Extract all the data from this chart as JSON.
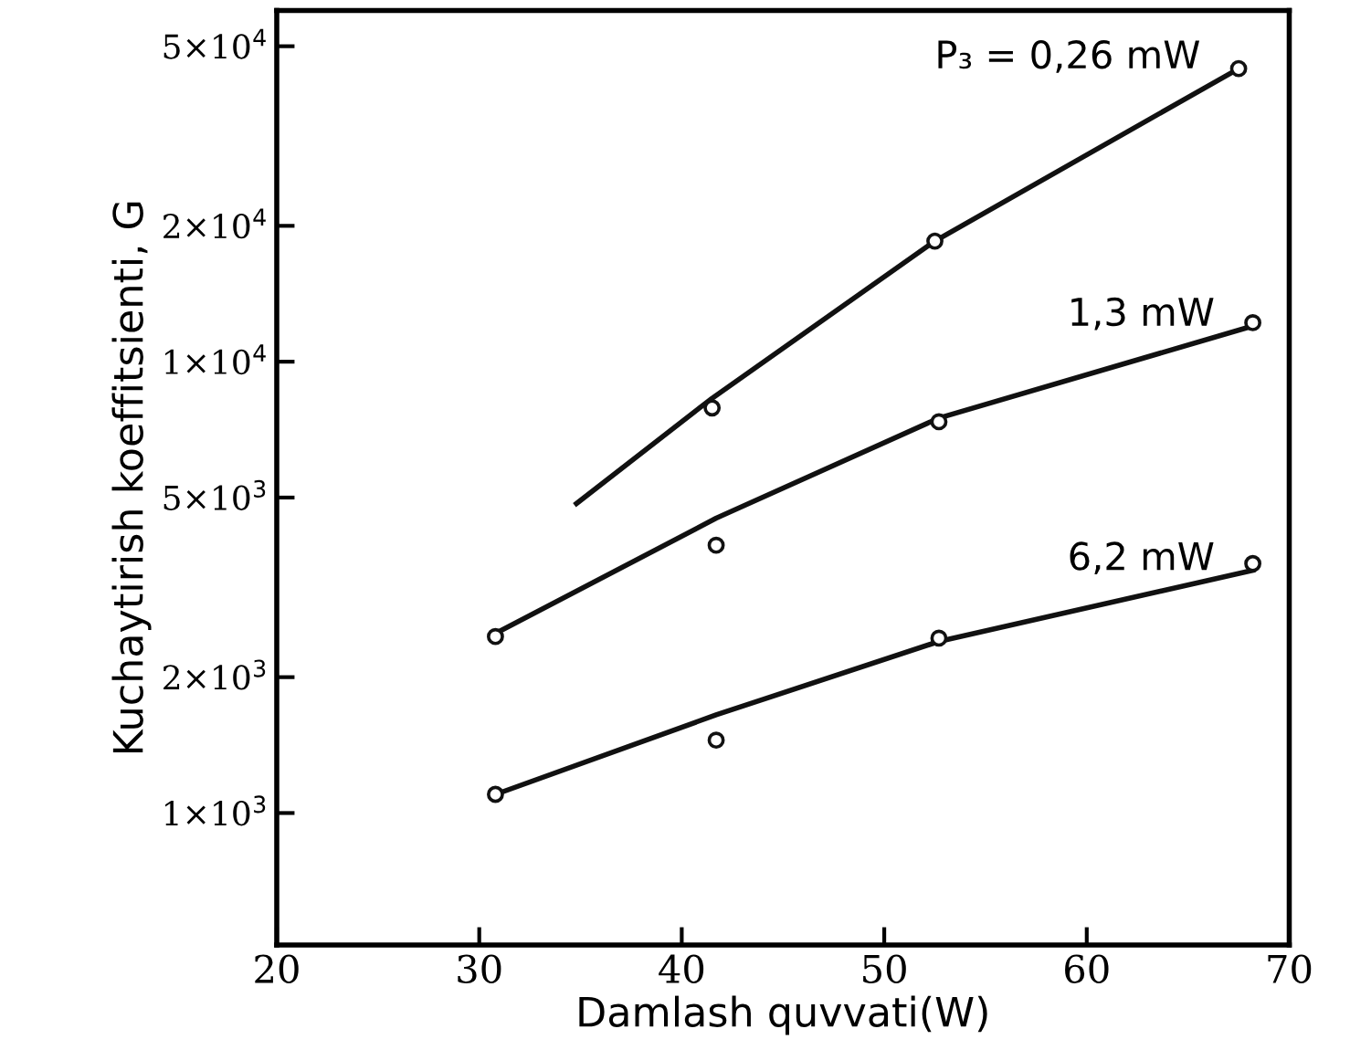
{
  "chart_data": {
    "type": "line",
    "xlabel": "Damlash quvvati(W)",
    "ylabel": "Kuchaytirish koeffitsienti, G",
    "xlim": [
      20,
      70
    ],
    "xticks": [
      20,
      30,
      40,
      50,
      60,
      70
    ],
    "log": "y",
    "ylim": [
      510,
      60000
    ],
    "yticks": [
      {
        "value": 1000,
        "label": "1×10$^{3}$"
      },
      {
        "value": 2000,
        "label": "2×10$^{3}$"
      },
      {
        "value": 5000,
        "label": "5×10$^{3}$"
      },
      {
        "value": 10000,
        "label": "1×10$^{4}$"
      },
      {
        "value": 20000,
        "label": "2×10$^{4}$"
      },
      {
        "value": 50000,
        "label": "5×10$^{4}$"
      }
    ],
    "grid": false,
    "legend": false,
    "series": [
      {
        "name": "P₃ = 0,26 mW",
        "color": "#111111",
        "x": [
          34.8,
          41.5,
          52.5,
          67.5
        ],
        "values": [
          4850,
          8300,
          18500,
          44600
        ]
      },
      {
        "name": "1,3 mW",
        "color": "#111111",
        "x": [
          30.8,
          41.7,
          52.7,
          68.2
        ],
        "values": [
          2500,
          4500,
          7500,
          12000
        ]
      },
      {
        "name": "6,2 mW",
        "color": "#111111",
        "x": [
          30.8,
          41.7,
          52.7,
          68.2
        ],
        "values": [
          1100,
          1650,
          2400,
          3450
        ]
      },
      {
        "type": "scatter",
        "color": "#111111",
        "marker": "circle",
        "x": [
          41.5,
          52.5,
          67.5
        ],
        "values": [
          7900,
          18500,
          44600
        ]
      },
      {
        "type": "scatter",
        "color": "#111111",
        "marker": "circle",
        "x": [
          30.8,
          41.7,
          52.7,
          68.2
        ],
        "values": [
          2460,
          3920,
          7360,
          12200
        ]
      },
      {
        "type": "scatter",
        "color": "#111111",
        "marker": "circle",
        "x": [
          30.8,
          41.7,
          52.7,
          68.2
        ],
        "values": [
          1100,
          1450,
          2440,
          3570
        ]
      }
    ]
  }
}
